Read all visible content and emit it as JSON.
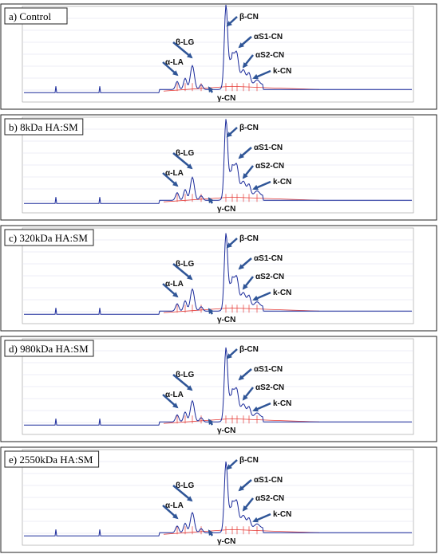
{
  "panels": [
    {
      "title": "a) Control",
      "labels": [
        "α-LA",
        "β-LG",
        "γ-CN",
        "β-CN",
        "αS1-CN",
        "αS2-CN",
        "k-CN"
      ]
    },
    {
      "title": "b) 8kDa HA:SM",
      "labels": [
        "α-LA",
        "β-LG",
        "γ-CN",
        "β-CN",
        "αS1-CN",
        "αS2-CN",
        "k-CN"
      ]
    },
    {
      "title": "c) 320kDa HA:SM",
      "labels": [
        "α-LA",
        "β-LG",
        "γ-CN",
        "β-CN",
        "αS1-CN",
        "αS2-CN",
        "k-CN"
      ]
    },
    {
      "title": "d) 980kDa HA:SM",
      "labels": [
        "α-LA",
        "β-LG",
        "γ-CN",
        "β-CN",
        "αS1-CN",
        "αS2-CN",
        "k-CN"
      ]
    },
    {
      "title": "e) 2550kDa HA:SM",
      "labels": [
        "α-LA",
        "β-LG",
        "γ-CN",
        "β-CN",
        "αS1-CN",
        "αS2-CN",
        "k-CN"
      ]
    }
  ]
}
